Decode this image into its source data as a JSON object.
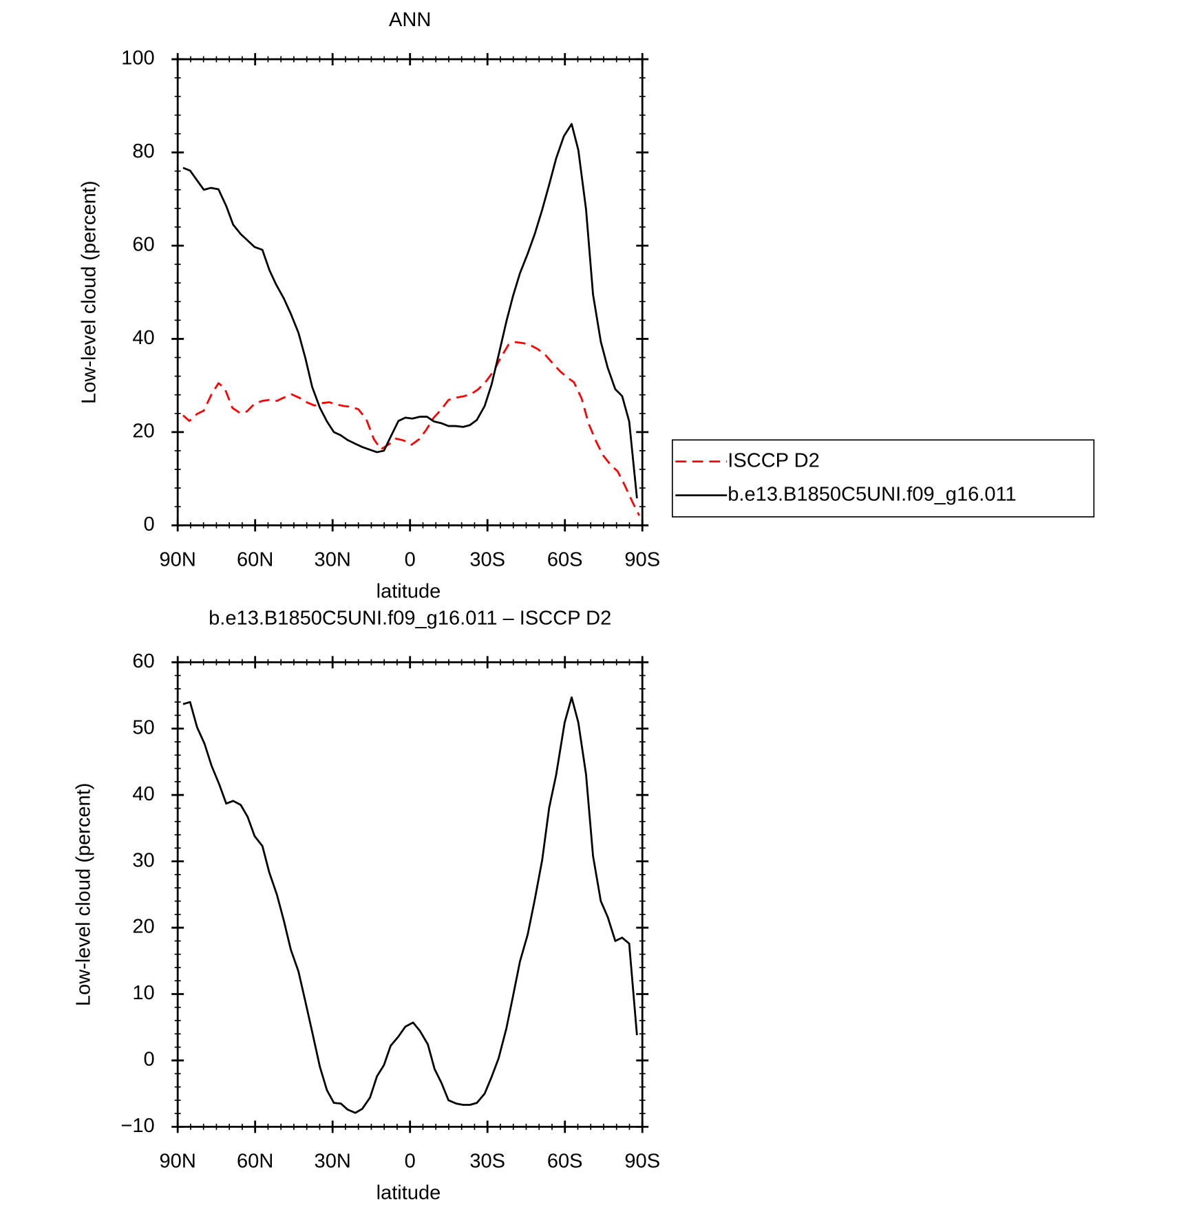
{
  "chart_data": [
    {
      "type": "line",
      "title": "ANN",
      "xlabel": "latitude",
      "ylabel": "Low-level cloud (percent)",
      "xlim": [
        90,
        -90
      ],
      "xticks": [
        {
          "value": 90,
          "label": "90N"
        },
        {
          "value": 60,
          "label": "60N"
        },
        {
          "value": 30,
          "label": "30N"
        },
        0,
        {
          "value": -30,
          "label": "30S"
        },
        {
          "value": -60,
          "label": "60S"
        },
        {
          "value": -90,
          "label": "90S"
        }
      ],
      "ylim": [
        0,
        100
      ],
      "yticks": [
        0,
        20,
        40,
        60,
        80,
        100
      ],
      "legend": "right",
      "series": [
        {
          "name": "ISCCP D2",
          "color": "#ff0000",
          "dashed": true,
          "x": [
            87.9,
            85.5,
            82.5,
            79.9,
            76.9,
            74.2,
            71.8,
            68.8,
            65.9,
            63.2,
            60.2,
            57.2,
            54.5,
            51.6,
            48.9,
            45.9,
            43.0,
            40.0,
            37.0,
            34.3,
            31.3,
            28.3,
            25.6,
            22.7,
            20.0,
            17.0,
            14.0,
            11.3,
            8.4,
            5.4,
            2.4,
            -0.6,
            -3.6,
            -6.3,
            -9.2,
            -12.2,
            -14.9,
            -17.9,
            -20.9,
            -23.5,
            -26.5,
            -29.5,
            -32.5,
            -35.2,
            -38.2,
            -40.9,
            -43.9,
            -46.8,
            -49.5,
            -52.5,
            -55.2,
            -58.2,
            -60.8,
            -63.5,
            -66.5,
            -69.2,
            -72.1,
            -74.8,
            -77.8,
            -80.4,
            -83.1,
            -86.1,
            -88.8
          ],
          "values": [
            23.6,
            22.4,
            23.9,
            24.6,
            28.1,
            30.5,
            29.4,
            25.2,
            24.1,
            24.4,
            26.1,
            26.7,
            26.9,
            26.7,
            27.4,
            28.1,
            27.4,
            26.4,
            25.7,
            26.2,
            26.4,
            25.9,
            25.6,
            25.4,
            24.9,
            22.8,
            18.5,
            16.3,
            17.3,
            18.6,
            18.2,
            17.3,
            18.5,
            20.5,
            23.1,
            24.9,
            26.9,
            27.4,
            27.7,
            28.1,
            29.2,
            30.9,
            33.2,
            36.0,
            38.8,
            39.3,
            39.1,
            38.6,
            37.8,
            36.5,
            34.8,
            33.0,
            31.8,
            30.7,
            27.2,
            21.8,
            18.0,
            15.0,
            12.9,
            11.6,
            8.7,
            5.1,
            2.1
          ]
        },
        {
          "name": "b.e13.B1850C5UNI.f09_g16.011",
          "color": "#000000",
          "dashed": false,
          "x": [
            87.9,
            85.2,
            79.9,
            77.2,
            74.2,
            71.2,
            68.5,
            65.6,
            62.9,
            60.2,
            57.2,
            54.5,
            51.9,
            48.9,
            46.2,
            43.2,
            40.5,
            37.9,
            34.9,
            32.2,
            29.5,
            26.8,
            24.2,
            21.2,
            18.5,
            15.5,
            12.8,
            10.1,
            7.5,
            4.5,
            1.8,
            -0.9,
            -3.9,
            -6.6,
            -9.2,
            -12.2,
            -14.9,
            -17.6,
            -20.6,
            -23.2,
            -25.9,
            -28.9,
            -31.6,
            -34.3,
            -37.3,
            -39.9,
            -42.6,
            -45.6,
            -48.3,
            -51.2,
            -53.9,
            -56.6,
            -59.6,
            -62.6,
            -65.2,
            -68.2,
            -70.9,
            -73.9,
            -76.6,
            -79.5,
            -82.2,
            -84.9,
            -87.9
          ],
          "values": [
            76.7,
            76.1,
            72.0,
            72.4,
            72.1,
            68.5,
            64.5,
            62.5,
            61.1,
            59.7,
            59.1,
            54.8,
            51.7,
            48.7,
            45.4,
            41.3,
            35.8,
            29.7,
            25.2,
            22.3,
            20.0,
            19.3,
            18.3,
            17.5,
            16.8,
            16.2,
            15.7,
            16.0,
            19.0,
            22.4,
            23.1,
            22.9,
            23.3,
            23.3,
            22.3,
            21.9,
            21.3,
            21.3,
            21.1,
            21.5,
            22.6,
            25.6,
            30.2,
            36.5,
            43.7,
            49.2,
            54.1,
            58.3,
            62.5,
            67.7,
            73.1,
            78.7,
            83.5,
            86.1,
            80.5,
            67.8,
            49.5,
            39.4,
            33.8,
            29.2,
            27.7,
            22.3,
            5.8
          ]
        }
      ]
    },
    {
      "type": "line",
      "title": "b.e13.B1850C5UNI.f09_g16.011 – ISCCP D2",
      "xlabel": "latitude",
      "ylabel": "Low-level cloud (percent)",
      "xlim": [
        90,
        -90
      ],
      "xticks": [
        {
          "value": 90,
          "label": "90N"
        },
        {
          "value": 60,
          "label": "60N"
        },
        {
          "value": 30,
          "label": "30N"
        },
        0,
        {
          "value": -30,
          "label": "30S"
        },
        {
          "value": -60,
          "label": "60S"
        },
        {
          "value": -90,
          "label": "90S"
        }
      ],
      "ylim": [
        -10,
        60
      ],
      "yticks": [
        {
          "value": -10,
          "label": "−10"
        },
        0,
        10,
        20,
        30,
        40,
        50,
        60
      ],
      "series": [
        {
          "color": "#000000",
          "dashed": false,
          "x": [
            87.9,
            85.2,
            82.5,
            79.6,
            76.9,
            73.9,
            71.2,
            68.5,
            65.6,
            62.9,
            60.2,
            57.2,
            54.5,
            51.6,
            48.9,
            46.2,
            43.2,
            40.5,
            37.9,
            34.9,
            32.2,
            29.5,
            26.8,
            24.2,
            21.2,
            18.5,
            15.5,
            12.8,
            10.1,
            7.5,
            4.5,
            1.8,
            -1.2,
            -3.9,
            -6.9,
            -9.5,
            -12.2,
            -14.9,
            -17.9,
            -20.6,
            -23.2,
            -25.9,
            -28.9,
            -31.6,
            -34.3,
            -37.3,
            -39.9,
            -42.6,
            -45.6,
            -48.3,
            -51.2,
            -53.9,
            -56.6,
            -59.9,
            -62.6,
            -65.2,
            -68.2,
            -70.9,
            -73.9,
            -76.6,
            -79.5,
            -82.2,
            -84.9,
            -87.9
          ],
          "values": [
            53.7,
            54.0,
            50.2,
            47.7,
            44.4,
            41.6,
            38.7,
            39.1,
            38.5,
            36.7,
            33.8,
            32.3,
            28.3,
            25.0,
            21.1,
            16.7,
            13.4,
            8.8,
            4.3,
            -1.0,
            -4.5,
            -6.4,
            -6.5,
            -7.4,
            -7.9,
            -7.3,
            -5.6,
            -2.4,
            -0.7,
            2.2,
            3.6,
            5.1,
            5.7,
            4.4,
            2.4,
            -1.3,
            -3.4,
            -6.0,
            -6.5,
            -6.7,
            -6.7,
            -6.4,
            -5.0,
            -2.5,
            0.3,
            4.8,
            9.7,
            14.9,
            19.0,
            24.2,
            30.2,
            38.1,
            43.0,
            50.9,
            54.7,
            50.9,
            43.1,
            30.8,
            24.0,
            21.6,
            18.0,
            18.5,
            17.6,
            3.8
          ]
        }
      ]
    }
  ]
}
